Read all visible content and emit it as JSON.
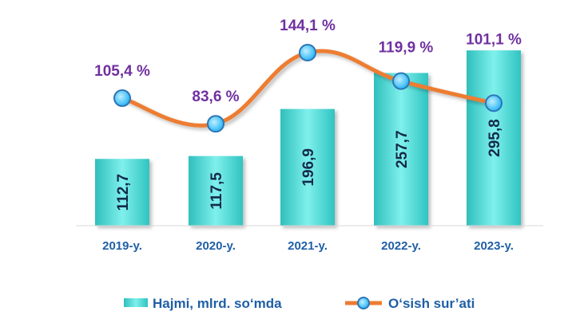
{
  "chart_data": {
    "type": "bar",
    "categories": [
      "2019-y.",
      "2020-y.",
      "2021-y.",
      "2022-y.",
      "2023-y."
    ],
    "series": [
      {
        "name": "Hajmi, mlrd. so‘mda",
        "type": "bar",
        "values": [
          112.7,
          117.5,
          196.9,
          257.7,
          295.8
        ],
        "labels": [
          "112,7",
          "117,5",
          "196,9",
          "257,7",
          "295,8"
        ]
      },
      {
        "name": "O‘sish sur’ati",
        "type": "line",
        "values": [
          105.4,
          83.6,
          144.1,
          119.9,
          101.1
        ],
        "labels": [
          "105,4 %",
          "83,6 %",
          "144,1 %",
          "119,9 %",
          "101,1 %"
        ]
      }
    ],
    "legend_position": "bottom",
    "grid": false,
    "colors": {
      "bar": "#3fd3d0",
      "line": "#ed7d31",
      "marker": "#4fc3f7"
    }
  }
}
